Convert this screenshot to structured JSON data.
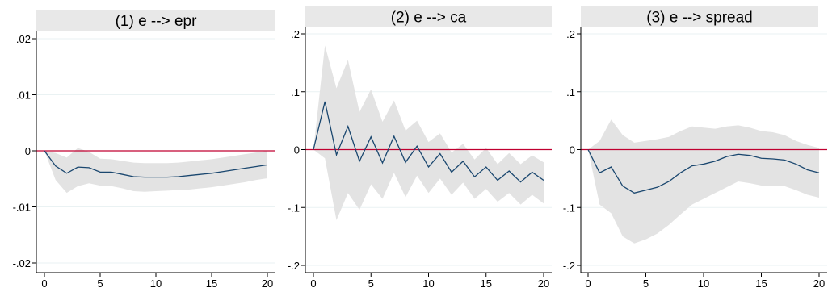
{
  "chart_data": [
    {
      "type": "area",
      "title": "(1) e --> epr",
      "xlabel": "",
      "ylabel": "",
      "xlim": [
        0,
        20
      ],
      "ylim": [
        -0.021,
        0.0215
      ],
      "xticks": [
        0,
        5,
        10,
        15,
        20
      ],
      "xtick_labels": [
        "0",
        "5",
        "10",
        "15",
        "20"
      ],
      "yticks": [
        -0.02,
        -0.01,
        0,
        0.01,
        0.02
      ],
      "ytick_labels": [
        "-.02",
        "-.01",
        "0",
        ".01",
        ".02"
      ],
      "reference_line": 0,
      "grid": true,
      "x": [
        0,
        1,
        2,
        3,
        4,
        5,
        6,
        7,
        8,
        9,
        10,
        11,
        12,
        13,
        14,
        15,
        16,
        17,
        18,
        19,
        20
      ],
      "series": [
        {
          "role": "irf",
          "values": [
            0,
            -0.0027,
            -0.004,
            -0.0029,
            -0.003,
            -0.0038,
            -0.0038,
            -0.0042,
            -0.0046,
            -0.0047,
            -0.0047,
            -0.0047,
            -0.0046,
            -0.0044,
            -0.0042,
            -0.004,
            -0.0037,
            -0.0034,
            -0.0031,
            -0.0028,
            -0.0025
          ]
        },
        {
          "role": "ci_upper",
          "values": [
            0,
            -0.0004,
            -0.0012,
            0.0005,
            -0.0002,
            -0.0014,
            -0.0015,
            -0.0018,
            -0.0021,
            -0.0022,
            -0.0022,
            -0.0022,
            -0.0021,
            -0.0019,
            -0.0017,
            -0.0015,
            -0.0012,
            -0.0009,
            -0.0006,
            -0.0003,
            0.0
          ]
        },
        {
          "role": "ci_lower",
          "values": [
            0,
            -0.0052,
            -0.0075,
            -0.0063,
            -0.0058,
            -0.0062,
            -0.0063,
            -0.0067,
            -0.0072,
            -0.0073,
            -0.0072,
            -0.0071,
            -0.007,
            -0.0069,
            -0.0067,
            -0.0065,
            -0.0062,
            -0.0059,
            -0.0056,
            -0.0052,
            -0.0049
          ]
        }
      ]
    },
    {
      "type": "area",
      "title": "(2) e --> ca",
      "xlabel": "",
      "ylabel": "",
      "xlim": [
        0,
        20
      ],
      "ylim": [
        -0.21,
        0.21
      ],
      "xticks": [
        0,
        5,
        10,
        15,
        20
      ],
      "xtick_labels": [
        "0",
        "5",
        "10",
        "15",
        "20"
      ],
      "yticks": [
        -0.2,
        -0.1,
        0,
        0.1,
        0.2
      ],
      "ytick_labels": [
        "-.2",
        "-.1",
        "0",
        ".1",
        ".2"
      ],
      "reference_line": 0,
      "grid": true,
      "x": [
        0,
        1,
        2,
        3,
        4,
        5,
        6,
        7,
        8,
        9,
        10,
        11,
        12,
        13,
        14,
        15,
        16,
        17,
        18,
        19,
        20
      ],
      "series": [
        {
          "role": "irf",
          "values": [
            0,
            0.083,
            -0.009,
            0.04,
            -0.02,
            0.022,
            -0.023,
            0.023,
            -0.022,
            0.006,
            -0.03,
            -0.007,
            -0.039,
            -0.02,
            -0.047,
            -0.03,
            -0.053,
            -0.037,
            -0.056,
            -0.039,
            -0.053
          ]
        },
        {
          "role": "ci_upper",
          "values": [
            0,
            0.18,
            0.106,
            0.155,
            0.065,
            0.104,
            0.048,
            0.085,
            0.033,
            0.05,
            0.013,
            0.028,
            -0.005,
            0.01,
            -0.017,
            0.003,
            -0.025,
            -0.006,
            -0.025,
            -0.01,
            -0.022
          ]
        },
        {
          "role": "ci_lower",
          "values": [
            0,
            -0.015,
            -0.122,
            -0.075,
            -0.104,
            -0.06,
            -0.085,
            -0.04,
            -0.082,
            -0.045,
            -0.075,
            -0.05,
            -0.078,
            -0.057,
            -0.085,
            -0.068,
            -0.09,
            -0.075,
            -0.095,
            -0.078,
            -0.093
          ]
        }
      ]
    },
    {
      "type": "area",
      "title": "(3) e --> spread",
      "xlabel": "",
      "ylabel": "",
      "xlim": [
        0,
        20
      ],
      "ylim": [
        -0.21,
        0.21
      ],
      "xticks": [
        0,
        5,
        10,
        15,
        20
      ],
      "xtick_labels": [
        "0",
        "5",
        "10",
        "15",
        "20"
      ],
      "yticks": [
        -0.2,
        -0.1,
        0,
        0.1,
        0.2
      ],
      "ytick_labels": [
        "-.2",
        "-.1",
        "0",
        ".1",
        ".2"
      ],
      "reference_line": 0,
      "grid": true,
      "x": [
        0,
        1,
        2,
        3,
        4,
        5,
        6,
        7,
        8,
        9,
        10,
        11,
        12,
        13,
        14,
        15,
        16,
        17,
        18,
        19,
        20
      ],
      "series": [
        {
          "role": "irf",
          "values": [
            0,
            -0.04,
            -0.03,
            -0.063,
            -0.075,
            -0.07,
            -0.065,
            -0.055,
            -0.04,
            -0.028,
            -0.025,
            -0.02,
            -0.012,
            -0.008,
            -0.01,
            -0.015,
            -0.016,
            -0.018,
            -0.025,
            -0.035,
            -0.04
          ]
        },
        {
          "role": "ci_upper",
          "values": [
            0,
            0.015,
            0.052,
            0.025,
            0.012,
            0.015,
            0.018,
            0.022,
            0.032,
            0.04,
            0.038,
            0.036,
            0.04,
            0.042,
            0.038,
            0.032,
            0.03,
            0.025,
            0.015,
            0.008,
            0.003
          ]
        },
        {
          "role": "ci_lower",
          "values": [
            0,
            -0.095,
            -0.11,
            -0.15,
            -0.162,
            -0.155,
            -0.145,
            -0.13,
            -0.112,
            -0.095,
            -0.085,
            -0.075,
            -0.065,
            -0.055,
            -0.058,
            -0.062,
            -0.062,
            -0.063,
            -0.07,
            -0.078,
            -0.083
          ]
        }
      ]
    }
  ],
  "colors": {
    "line": "#1a476f",
    "ci_band": "#e3e3e3",
    "zero_line": "#c00030",
    "title_bar": "#e8e8e8",
    "grid": "#eaf2f3",
    "axis": "#000000"
  }
}
